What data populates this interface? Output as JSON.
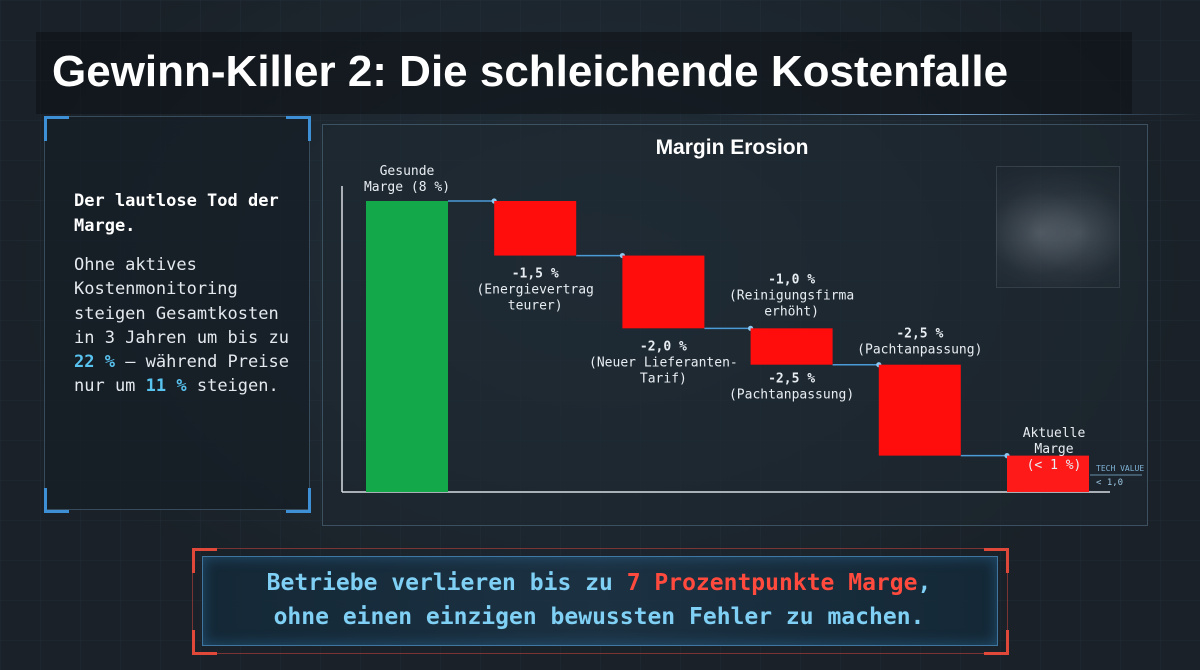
{
  "title": "Gewinn-Killer 2: Die schleichende Kostenfalle",
  "panel": {
    "heading": "Der lautlose Tod der Marge.",
    "body_part1": "Ohne aktives Kostenmonitoring steigen Gesamtkosten in 3 Jahren um bis zu ",
    "highlight_cost": "22 %",
    "body_part2": " – während Preise nur um ",
    "highlight_price": "11 %",
    "body_part3": " steigen."
  },
  "banner": {
    "part1": "Betriebe verlieren bis zu ",
    "highlight": "7 Prozentpunkte Marge",
    "part2": ",",
    "line2": "ohne einen einzigen bewussten Fehler zu machen."
  },
  "chart_data": {
    "type": "waterfall",
    "title": "Margin Erosion",
    "unit": "%",
    "steps": [
      {
        "id": "start",
        "kind": "total",
        "value": 8.0,
        "label_lines": [
          "Gesunde",
          "Marge (8 %)"
        ]
      },
      {
        "id": "energy",
        "kind": "delta",
        "value": -1.5,
        "label_lines": [
          "-1,5 %",
          "(Energievertrag",
          "teurer)"
        ]
      },
      {
        "id": "supplier",
        "kind": "delta",
        "value": -2.0,
        "label_lines": [
          "-2,0 %",
          "(Neuer Lieferanten-",
          "Tarif)"
        ]
      },
      {
        "id": "cleaning",
        "kind": "delta",
        "value": -1.0,
        "label_lines": [
          "-1,0 %",
          "(Reinigungsfirma",
          "erhöht)"
        ],
        "extra_lines": [
          "-2,5 %",
          "(Pachtanpassung)"
        ]
      },
      {
        "id": "lease",
        "kind": "delta",
        "value": -2.5,
        "label_lines": [
          "-2,5 %",
          "(Pachtanpassung)"
        ]
      },
      {
        "id": "end",
        "kind": "total",
        "value": 1.0,
        "label_lines": [
          "Aktuelle",
          "Marge",
          "(< 1 %)"
        ]
      }
    ],
    "tech_value_label": "TECH VALUE",
    "tech_value": "< 1,0",
    "colors": {
      "start": "#13a84a",
      "negative": "#ff0d0d",
      "end": "#ff1a1a",
      "connector": "#4a9bd8",
      "axis": "#d8dde2"
    }
  }
}
